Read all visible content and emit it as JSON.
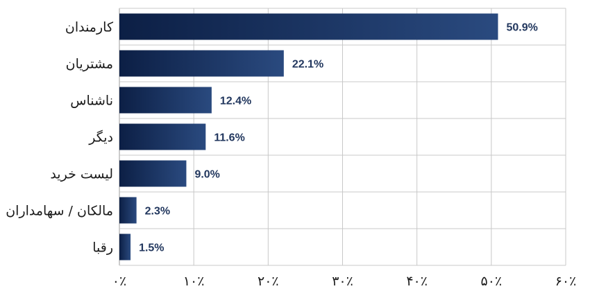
{
  "chart_data": {
    "type": "bar",
    "orientation": "horizontal",
    "categories": [
      "کارمندان",
      "مشتریان",
      "ناشناس",
      "دیگر",
      "لیست خرید",
      "مالکان / سهامداران",
      "رقبا"
    ],
    "values": [
      50.9,
      22.1,
      12.4,
      11.6,
      9.0,
      2.3,
      1.5
    ],
    "value_labels": [
      "50.9%",
      "22.1%",
      "12.4%",
      "11.6%",
      "9.0%",
      "2.3%",
      "1.5%"
    ],
    "x_ticks": [
      0,
      10,
      20,
      30,
      40,
      50,
      60
    ],
    "x_tick_labels": [
      "۰٪",
      "۱۰٪",
      "۲۰٪",
      "۳۰٪",
      "۴۰٪",
      "۵۰٪",
      "۶۰٪"
    ],
    "xlim": [
      0,
      60
    ],
    "grid": true,
    "title": "",
    "xlabel": "",
    "ylabel": "",
    "colors": {
      "bar_dark": "#0c1f45",
      "bar_light": "#2a4a7f",
      "value_text": "#22375e"
    }
  }
}
